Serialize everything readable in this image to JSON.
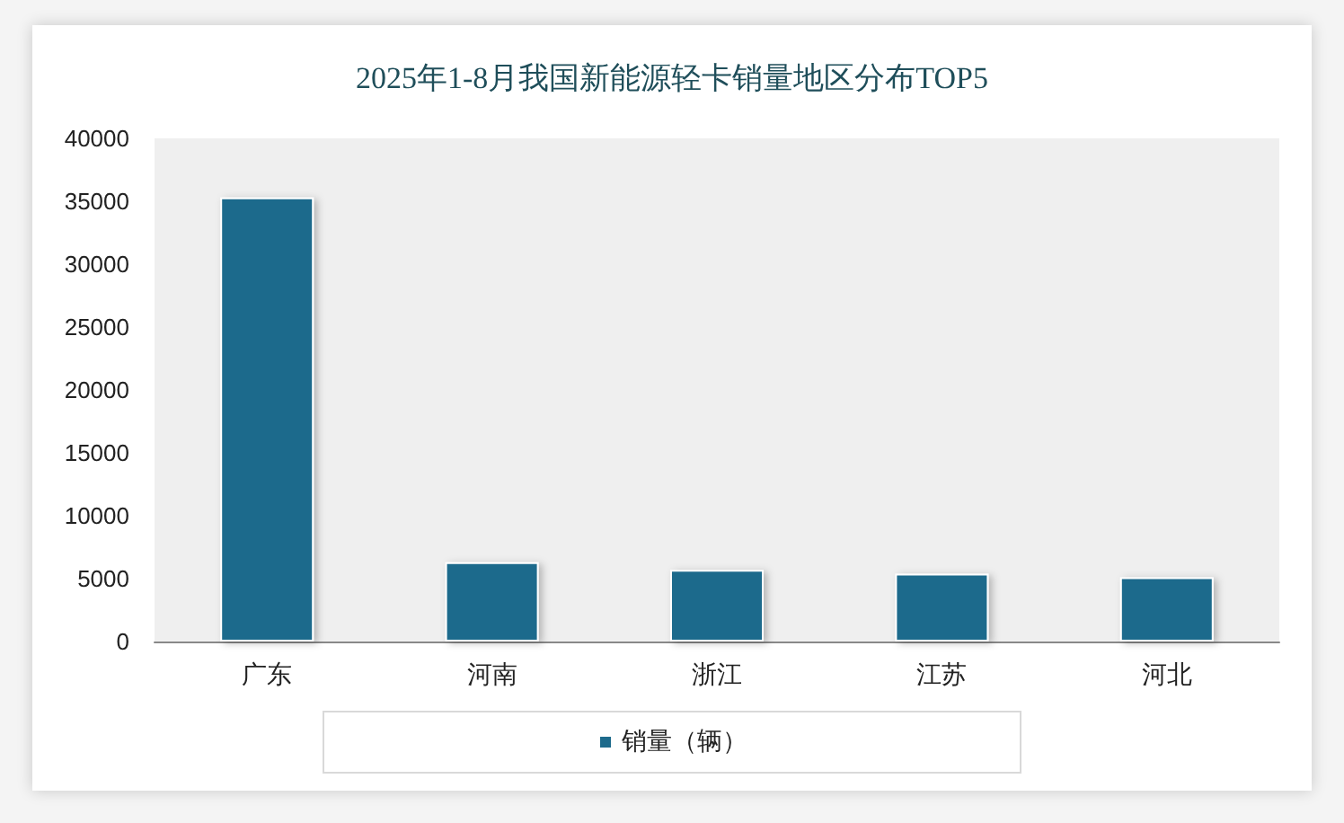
{
  "chart_data": {
    "type": "bar",
    "title": "2025年1-8月我国新能源轻卡销量地区分布TOP5",
    "categories": [
      "广东",
      "河南",
      "浙江",
      "江苏",
      "河北"
    ],
    "series": [
      {
        "name": "销量（辆）",
        "color": "#1e6b8c",
        "values": [
          35300,
          6300,
          5700,
          5400,
          5100
        ]
      }
    ],
    "ylim": [
      0,
      40000
    ],
    "yticks": [
      0,
      5000,
      10000,
      15000,
      20000,
      25000,
      30000,
      35000,
      40000
    ],
    "grid": false,
    "legend": "bottom"
  }
}
